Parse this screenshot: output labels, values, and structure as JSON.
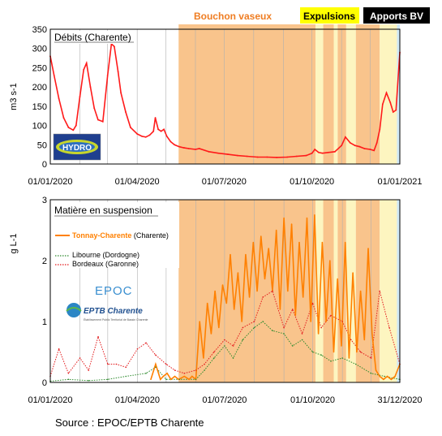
{
  "header": {
    "bouchon": "Bouchon vaseux",
    "expulsions": "Expulsions",
    "apports": "Apports BV"
  },
  "colors": {
    "bouchon": "#f9c48c",
    "bouchon_text": "#ef7d22",
    "expulsions": "#fdf5c0",
    "expulsions_label": "#ffff00",
    "apports": "#cfe9f7",
    "apports_label": "#000000",
    "flow": "#ff1a1a",
    "tonnay": "#ff8000",
    "libourne": "#2e8b2e",
    "bordeaux": "#e31a1c"
  },
  "source": "Source : EPOC/EPTB Charente",
  "logos": {
    "hydro": "HYDRO",
    "epoc": "EPOC",
    "eptb": "EPTB Charente",
    "eptb_sub": "Établissement Public Territorial de Bassin Charente"
  },
  "chart_data": [
    {
      "type": "line",
      "title": "Débits (Charente)",
      "ylabel": "m3 s-1",
      "ylim": [
        0,
        350
      ],
      "yticks": [
        "0",
        "50",
        "100",
        "150",
        "200",
        "250",
        "300",
        "350"
      ],
      "xlim": [
        "2020-01-01",
        "2021-01-01"
      ],
      "xticks": [
        "01/01/2020",
        "01/04/2020",
        "01/07/2020",
        "01/10/2020",
        "01/01/2021"
      ],
      "series": [
        {
          "x": [
            "2020-01-01",
            "2020-01-05",
            "2020-01-10",
            "2020-01-15",
            "2020-01-20",
            "2020-01-25",
            "2020-01-28",
            "2020-02-01",
            "2020-02-05",
            "2020-02-08",
            "2020-02-12",
            "2020-02-16",
            "2020-02-20",
            "2020-02-25",
            "2020-03-01",
            "2020-03-05",
            "2020-03-08",
            "2020-03-12",
            "2020-03-15",
            "2020-03-20",
            "2020-03-25",
            "2020-04-01",
            "2020-04-06",
            "2020-04-10",
            "2020-04-14",
            "2020-04-18",
            "2020-04-20",
            "2020-04-23",
            "2020-04-26",
            "2020-04-29",
            "2020-05-02",
            "2020-05-06",
            "2020-05-10",
            "2020-05-15",
            "2020-05-20",
            "2020-05-25",
            "2020-06-01",
            "2020-06-05",
            "2020-06-15",
            "2020-06-25",
            "2020-07-05",
            "2020-07-15",
            "2020-07-25",
            "2020-08-05",
            "2020-08-15",
            "2020-08-25",
            "2020-09-05",
            "2020-09-15",
            "2020-09-25",
            "2020-10-01",
            "2020-10-04",
            "2020-10-08",
            "2020-10-12",
            "2020-10-18",
            "2020-10-25",
            "2020-11-01",
            "2020-11-05",
            "2020-11-10",
            "2020-11-15",
            "2020-11-20",
            "2020-11-25",
            "2020-12-01",
            "2020-12-05",
            "2020-12-08",
            "2020-12-11",
            "2020-12-14",
            "2020-12-18",
            "2020-12-22",
            "2020-12-25",
            "2020-12-28",
            "2021-01-01"
          ],
          "values": [
            280,
            230,
            170,
            120,
            95,
            88,
            100,
            175,
            245,
            262,
            200,
            145,
            115,
            110,
            230,
            312,
            305,
            240,
            185,
            135,
            95,
            78,
            72,
            70,
            75,
            85,
            120,
            90,
            85,
            90,
            72,
            58,
            50,
            45,
            42,
            40,
            38,
            40,
            32,
            28,
            25,
            22,
            20,
            18,
            18,
            17,
            18,
            20,
            22,
            28,
            38,
            30,
            28,
            30,
            32,
            48,
            70,
            55,
            48,
            45,
            40,
            38,
            35,
            55,
            90,
            155,
            185,
            160,
            135,
            140,
            290
          ]
        }
      ]
    },
    {
      "type": "line",
      "title": "Matière en suspension",
      "ylabel": "g L-1",
      "ylim": [
        0,
        3
      ],
      "yticks": [
        "0",
        "1",
        "2",
        "3"
      ],
      "xlim": [
        "2020-01-01",
        "2020-12-31"
      ],
      "xticks": [
        "01/01/2020",
        "01/04/2020",
        "01/07/2020",
        "01/10/2020",
        "31/12/2020"
      ],
      "legend": [
        {
          "name": "Tonnay-Charente",
          "suffix": " (Charente)",
          "style": "solid"
        },
        {
          "name": "Libourne (Dordogne)",
          "style": "dotted"
        },
        {
          "name": "Bordeaux (Garonne)",
          "style": "dotted"
        }
      ],
      "series": [
        {
          "name": "Tonnay-Charente",
          "x": [
            "2020-04-15",
            "2020-04-20",
            "2020-04-25",
            "2020-04-28",
            "2020-05-02",
            "2020-05-06",
            "2020-05-10",
            "2020-05-14",
            "2020-05-20",
            "2020-05-25",
            "2020-05-28",
            "2020-06-01",
            "2020-06-05",
            "2020-06-09",
            "2020-06-13",
            "2020-06-17",
            "2020-06-21",
            "2020-06-25",
            "2020-06-29",
            "2020-07-03",
            "2020-07-07",
            "2020-07-11",
            "2020-07-15",
            "2020-07-19",
            "2020-07-23",
            "2020-07-27",
            "2020-07-31",
            "2020-08-04",
            "2020-08-08",
            "2020-08-12",
            "2020-08-16",
            "2020-08-20",
            "2020-08-24",
            "2020-08-28",
            "2020-09-01",
            "2020-09-05",
            "2020-09-09",
            "2020-09-13",
            "2020-09-17",
            "2020-09-21",
            "2020-09-25",
            "2020-09-29",
            "2020-10-03",
            "2020-10-07",
            "2020-10-11",
            "2020-10-15",
            "2020-10-19",
            "2020-10-23",
            "2020-10-27",
            "2020-10-31",
            "2020-11-04",
            "2020-11-08",
            "2020-11-12",
            "2020-11-16",
            "2020-11-20",
            "2020-11-24",
            "2020-11-28",
            "2020-12-02",
            "2020-12-06",
            "2020-12-10",
            "2020-12-14",
            "2020-12-18",
            "2020-12-22",
            "2020-12-26",
            "2020-12-31"
          ],
          "values": [
            0.05,
            0.3,
            0.05,
            0.1,
            0.15,
            0.05,
            0.1,
            0.05,
            0.1,
            0.05,
            0.1,
            0.05,
            1.0,
            0.4,
            1.3,
            0.8,
            1.5,
            0.9,
            1.6,
            1.3,
            2.1,
            1.2,
            1.8,
            1.0,
            2.1,
            1.4,
            2.3,
            1.5,
            2.4,
            1.7,
            2.2,
            1.5,
            2.5,
            1.2,
            2.7,
            1.5,
            2.6,
            1.1,
            2.3,
            1.4,
            2.7,
            1.0,
            2.75,
            0.8,
            2.3,
            1.0,
            2.0,
            0.5,
            1.7,
            0.6,
            2.3,
            0.4,
            1.8,
            0.5,
            1.5,
            0.7,
            2.2,
            0.8,
            0.2,
            0.1,
            0.05,
            0.1,
            0.05,
            0.1,
            0.3
          ]
        },
        {
          "name": "Libourne (Dordogne)",
          "x": [
            "2020-01-01",
            "2020-01-20",
            "2020-02-10",
            "2020-03-01",
            "2020-03-20",
            "2020-04-10",
            "2020-04-20",
            "2020-05-01",
            "2020-05-15",
            "2020-06-01",
            "2020-06-10",
            "2020-06-20",
            "2020-07-01",
            "2020-07-10",
            "2020-07-20",
            "2020-08-01",
            "2020-08-10",
            "2020-08-20",
            "2020-09-01",
            "2020-09-10",
            "2020-09-20",
            "2020-10-01",
            "2020-10-10",
            "2020-10-20",
            "2020-11-01",
            "2020-11-15",
            "2020-12-01",
            "2020-12-15",
            "2020-12-31"
          ],
          "values": [
            0.02,
            0.05,
            0.03,
            0.05,
            0.1,
            0.15,
            0.25,
            0.05,
            0.05,
            0.05,
            0.2,
            0.4,
            0.6,
            0.4,
            0.7,
            0.9,
            1.0,
            0.85,
            0.8,
            0.6,
            0.7,
            0.5,
            0.45,
            0.35,
            0.4,
            0.3,
            0.15,
            0.1,
            0.05
          ]
        },
        {
          "name": "Bordeaux (Garonne)",
          "x": [
            "2020-01-01",
            "2020-01-10",
            "2020-01-20",
            "2020-02-01",
            "2020-02-10",
            "2020-02-20",
            "2020-03-01",
            "2020-03-10",
            "2020-03-20",
            "2020-04-01",
            "2020-04-10",
            "2020-04-20",
            "2020-05-01",
            "2020-05-10",
            "2020-05-20",
            "2020-06-01",
            "2020-06-10",
            "2020-06-20",
            "2020-07-01",
            "2020-07-10",
            "2020-07-20",
            "2020-08-01",
            "2020-08-10",
            "2020-08-20",
            "2020-09-01",
            "2020-09-10",
            "2020-09-20",
            "2020-10-01",
            "2020-10-10",
            "2020-10-20",
            "2020-11-01",
            "2020-11-10",
            "2020-11-20",
            "2020-12-01",
            "2020-12-10",
            "2020-12-20",
            "2020-12-31"
          ],
          "values": [
            0.1,
            0.55,
            0.15,
            0.4,
            0.2,
            0.75,
            0.3,
            0.3,
            0.25,
            0.55,
            0.65,
            0.45,
            0.3,
            0.2,
            0.15,
            0.2,
            0.3,
            0.5,
            0.7,
            0.6,
            0.9,
            1.0,
            1.4,
            1.5,
            0.9,
            1.2,
            0.8,
            1.3,
            0.9,
            1.1,
            1.0,
            0.7,
            0.5,
            0.4,
            1.5,
            0.9,
            0.3
          ]
        }
      ],
      "periods": {
        "bouchon": [
          [
            "2020-05-14",
            "2020-10-04"
          ],
          [
            "2020-10-12",
            "2020-10-23"
          ],
          [
            "2020-10-27",
            "2020-11-05"
          ],
          [
            "2020-11-15",
            "2020-12-10"
          ]
        ],
        "expulsions": [
          [
            "2020-10-04",
            "2020-10-12"
          ],
          [
            "2020-10-23",
            "2020-10-27"
          ],
          [
            "2020-11-05",
            "2020-11-15"
          ],
          [
            "2020-12-10",
            "2020-12-28"
          ]
        ],
        "apports": [
          [
            "2020-12-28",
            "2020-12-31"
          ]
        ]
      }
    }
  ]
}
